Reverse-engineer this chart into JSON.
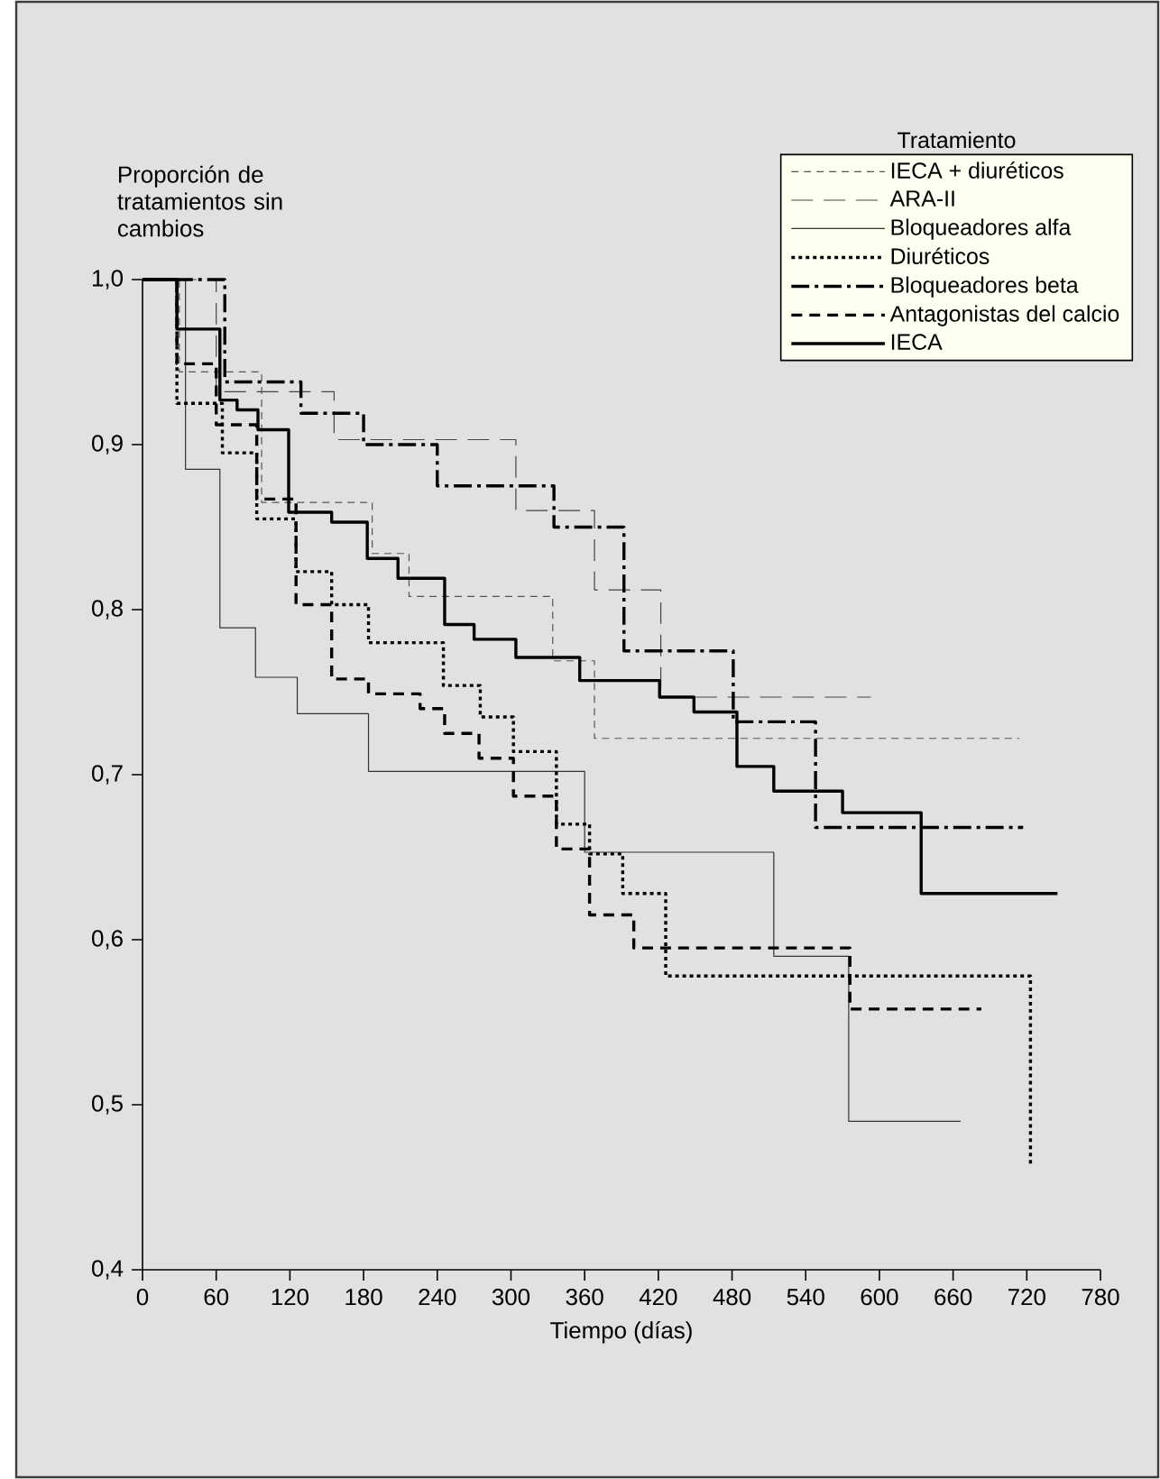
{
  "chart_data": {
    "type": "step",
    "xlabel": "Tiempo (días)",
    "ylabel": "Proporción de tratamientos sin cambios",
    "legend_title": "Tratamiento",
    "legend": "top right",
    "xlim": [
      0,
      780
    ],
    "xticks": [
      0,
      60,
      120,
      180,
      240,
      300,
      360,
      420,
      480,
      540,
      600,
      660,
      720,
      780
    ],
    "ylim": [
      0.4,
      1.0
    ],
    "yticks": [
      {
        "value": 0.4,
        "label": "0,4"
      },
      {
        "value": 0.5,
        "label": "0,5"
      },
      {
        "value": 0.6,
        "label": "0,6"
      },
      {
        "value": 0.7,
        "label": "0,7"
      },
      {
        "value": 0.8,
        "label": "0,8"
      },
      {
        "value": 0.9,
        "label": "0,9"
      },
      {
        "value": 1.0,
        "label": "1,0"
      }
    ],
    "series": [
      {
        "name": "IECA + diuréticos",
        "color": "#555555",
        "line_style": "dashed",
        "x": [
          0,
          30,
          97,
          187,
          217,
          334,
          368,
          714
        ],
        "values": [
          1.0,
          0.944,
          0.865,
          0.834,
          0.808,
          0.769,
          0.722,
          0.722
        ]
      },
      {
        "name": "ARA-II",
        "color": "#444444",
        "line_style": "longdash",
        "x": [
          0,
          60,
          156,
          304,
          368,
          422,
          593
        ],
        "values": [
          1.0,
          0.932,
          0.903,
          0.86,
          0.812,
          0.747,
          0.747
        ]
      },
      {
        "name": "Bloqueadores alfa",
        "color": "#333333",
        "line_style": "solid",
        "x": [
          0,
          35,
          63,
          92,
          126,
          184,
          360,
          514,
          575,
          666
        ],
        "values": [
          1.0,
          0.885,
          0.789,
          0.759,
          0.737,
          0.702,
          0.653,
          0.59,
          0.49,
          0.49
        ]
      },
      {
        "name": "Diuréticos",
        "color": "#000000",
        "line_style": "dotted",
        "x": [
          0,
          28,
          65,
          93,
          125,
          154,
          184,
          245,
          275,
          302,
          337,
          364,
          391,
          426,
          723
        ],
        "values": [
          1.0,
          0.925,
          0.895,
          0.855,
          0.823,
          0.803,
          0.78,
          0.754,
          0.735,
          0.714,
          0.67,
          0.652,
          0.628,
          0.578,
          0.463
        ]
      },
      {
        "name": "Bloqueadores beta",
        "color": "#000000",
        "line_style": "dashdot",
        "x": [
          0,
          67,
          129,
          180,
          240,
          335,
          392,
          481,
          548,
          717
        ],
        "values": [
          1.0,
          0.938,
          0.919,
          0.9,
          0.875,
          0.85,
          0.775,
          0.732,
          0.668,
          0.668
        ]
      },
      {
        "name": "Antagonistas del calcio",
        "color": "#000000",
        "line_style": "dashed",
        "x": [
          0,
          28,
          60,
          93,
          125,
          154,
          184,
          226,
          246,
          274,
          302,
          337,
          364,
          400,
          576,
          683
        ],
        "values": [
          1.0,
          0.949,
          0.912,
          0.867,
          0.803,
          0.758,
          0.749,
          0.74,
          0.725,
          0.71,
          0.687,
          0.655,
          0.615,
          0.595,
          0.558,
          0.558
        ]
      },
      {
        "name": "IECA",
        "color": "#000000",
        "line_style": "solid",
        "x": [
          0,
          28,
          63,
          77,
          94,
          119,
          154,
          183,
          208,
          246,
          270,
          304,
          356,
          421,
          449,
          484,
          514,
          570,
          634,
          745
        ],
        "values": [
          1.0,
          0.97,
          0.927,
          0.921,
          0.909,
          0.859,
          0.853,
          0.831,
          0.819,
          0.791,
          0.782,
          0.771,
          0.757,
          0.747,
          0.738,
          0.705,
          0.69,
          0.677,
          0.628,
          0.628
        ]
      }
    ]
  }
}
